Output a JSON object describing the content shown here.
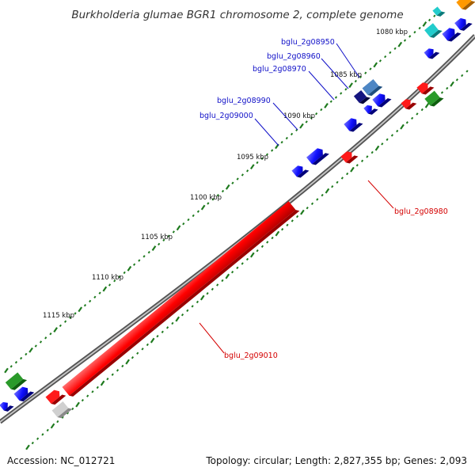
{
  "title": "Burkholderia glumae BGR1 chromosome 2, complete genome",
  "footer": {
    "accession": "Accession: NC_012721",
    "topology": "Topology: circular; Length: 2,827,355 bp; Genes: 2,093"
  },
  "kbp_labels": [
    "1080 kbp",
    "1085 kbp",
    "1090 kbp",
    "1095 kbp",
    "1100 kbp",
    "1105 kbp",
    "1110 kbp",
    "1115 kbp"
  ],
  "gene_labels": [
    {
      "name": "bglu_2g08950",
      "strand": "forward"
    },
    {
      "name": "bglu_2g08960",
      "strand": "forward"
    },
    {
      "name": "bglu_2g08970",
      "strand": "forward"
    },
    {
      "name": "bglu_2g08990",
      "strand": "forward"
    },
    {
      "name": "bglu_2g09000",
      "strand": "forward"
    },
    {
      "name": "bglu_2g08980",
      "strand": "reverse"
    },
    {
      "name": "bglu_2g09010",
      "strand": "reverse"
    }
  ],
  "colors": {
    "forward_gene": "#1a1aff",
    "reverse_gene": "#ff1a1a",
    "backbone": "#7a7a7a",
    "tick": "#1e7a1e",
    "label_forward": "#1010c8",
    "label_reverse": "#d40000"
  }
}
